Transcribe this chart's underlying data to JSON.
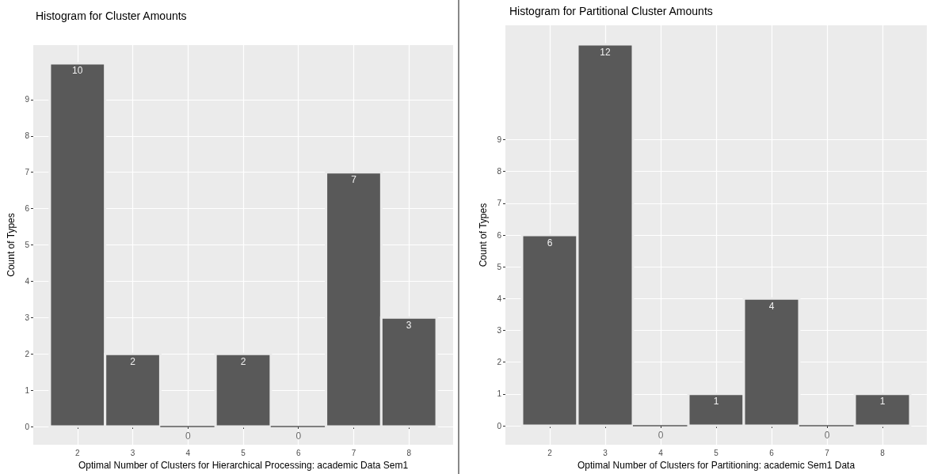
{
  "chart_data": [
    {
      "type": "histogram",
      "title": "Histogram for Cluster Amounts",
      "xlabel": "Optimal Number of Clusters for Hierarchical Processing: academic Data Sem1",
      "ylabel": "Count of Types",
      "bins": [
        1.5,
        2.5,
        3.5,
        4.5,
        5.5,
        6.5,
        7.5,
        8.5
      ],
      "values": [
        10,
        2,
        0,
        2,
        0,
        7,
        3
      ],
      "color": "#595959",
      "xlim": [
        1.2,
        8.8
      ],
      "xticks": [
        2,
        3,
        4,
        5,
        6,
        7,
        8
      ],
      "ylim": [
        -0.5,
        10.5
      ],
      "yticks": [
        0,
        1,
        2,
        3,
        4,
        5,
        6,
        7,
        8,
        9
      ],
      "grid": true,
      "data_labels": true
    },
    {
      "type": "histogram",
      "title": "Histogram for Partitional Cluster Amounts",
      "xlabel": "Optimal Number of Clusters for Partitioning: academic Sem1 Data",
      "ylabel": "Count of Types",
      "bins": [
        1.5,
        2.5,
        3.5,
        4.5,
        5.5,
        6.5,
        7.5,
        8.5
      ],
      "values": [
        6,
        12,
        0,
        1,
        4,
        0,
        1
      ],
      "color": "#595959",
      "xlim": [
        1.2,
        8.8
      ],
      "xticks": [
        2,
        3,
        4,
        5,
        6,
        7,
        8
      ],
      "ylim": [
        -0.6,
        12.6
      ],
      "yticks": [
        0,
        1,
        2,
        3,
        4,
        5,
        6,
        7,
        8,
        9
      ],
      "grid": true,
      "data_labels": true
    }
  ]
}
